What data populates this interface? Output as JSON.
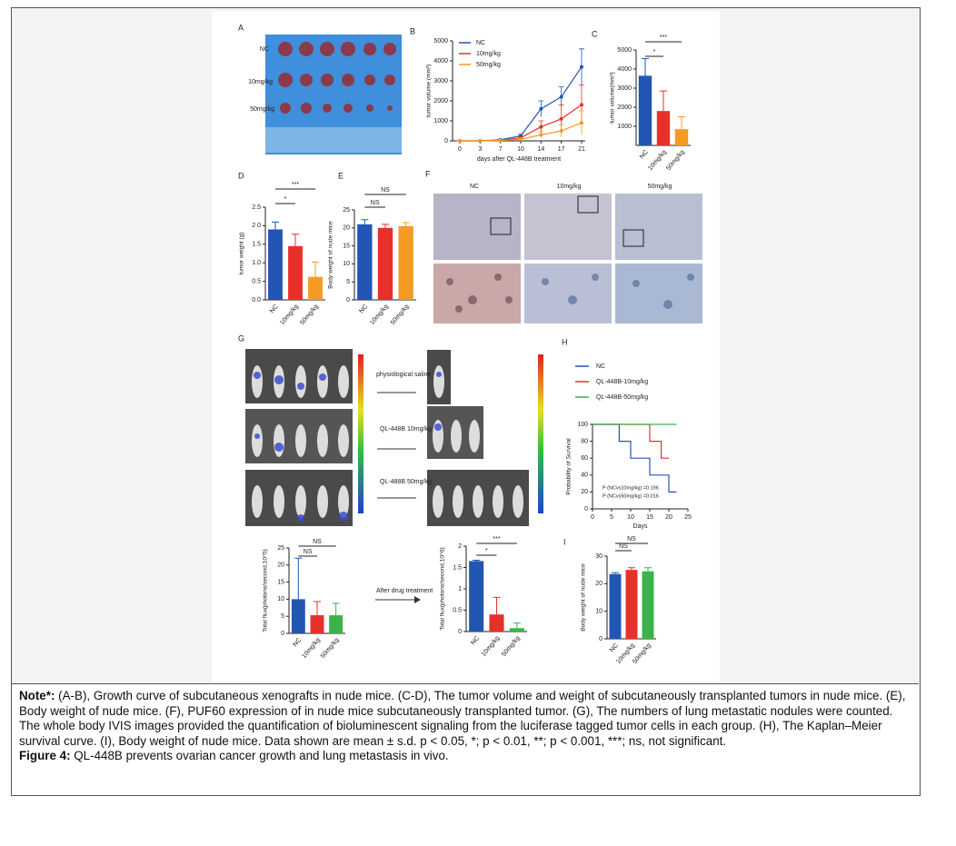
{
  "figure": {
    "panel_labels": [
      "A",
      "B",
      "C",
      "D",
      "E",
      "F",
      "G",
      "H",
      "I"
    ],
    "panel_a": {
      "rows": [
        "NC",
        "10mg/kg",
        "50mg/kg"
      ]
    },
    "panel_f": {
      "columns": [
        "NC",
        "10mg/kg",
        "50mg/kg"
      ]
    },
    "panel_g": {
      "groups": [
        "physiological saline",
        "QL-448B 10mg/kg",
        "QL-488B 50mg/kg"
      ],
      "arrow_label": "After drug treatment"
    }
  },
  "chart_data": [
    {
      "type": "line",
      "categories": [
        "0",
        "3",
        "7",
        "10",
        "14",
        "17",
        "21"
      ],
      "x_label": "days after QL-448B treatment",
      "y_label": "tumor volume (mm³)",
      "ylim": [
        0,
        5000
      ],
      "yticks": [
        0,
        1000,
        2000,
        3000,
        4000,
        5000
      ],
      "series": [
        {
          "name": "NC",
          "color": "#2256b4",
          "values": [
            0,
            0,
            50,
            250,
            1600,
            2200,
            3700
          ],
          "errors": [
            0,
            0,
            20,
            80,
            400,
            500,
            900
          ]
        },
        {
          "name": "10mg/kg",
          "color": "#e8302a",
          "values": [
            0,
            0,
            30,
            150,
            700,
            1100,
            1800
          ],
          "errors": [
            0,
            0,
            10,
            50,
            300,
            700,
            1000
          ]
        },
        {
          "name": "50mg/kg",
          "color": "#f59a23",
          "values": [
            0,
            0,
            20,
            80,
            300,
            500,
            900
          ],
          "errors": [
            0,
            0,
            5,
            30,
            150,
            300,
            600
          ]
        }
      ]
    },
    {
      "type": "bar",
      "categories": [
        "NC",
        "10mg/kg",
        "50mg/kg"
      ],
      "colors": [
        "#2256b4",
        "#e8302a",
        "#f59a23"
      ],
      "y_label": "tumor volume(mm³)",
      "ylim": [
        0,
        5000
      ],
      "yticks": [
        1000,
        2000,
        3000,
        4000,
        5000
      ],
      "values": [
        3650,
        1800,
        850
      ],
      "errors": [
        900,
        1050,
        650
      ],
      "annotations": [
        "*",
        "***"
      ]
    },
    {
      "type": "bar",
      "categories": [
        "NC",
        "10mg/kg",
        "50mg/kg"
      ],
      "colors": [
        "#2256b4",
        "#e8302a",
        "#f59a23"
      ],
      "y_label": "tumor weight (g)",
      "ylim": [
        0,
        2.5
      ],
      "yticks": [
        {
          "value": 0,
          "label": "0.0"
        },
        0.5,
        {
          "value": 1,
          "label": "1.0"
        },
        1.5,
        {
          "value": 2,
          "label": "2.0"
        },
        2.5
      ],
      "values": [
        1.9,
        1.45,
        0.62
      ],
      "errors": [
        0.2,
        0.32,
        0.4
      ],
      "annotations": [
        "*",
        "***"
      ]
    },
    {
      "type": "bar",
      "categories": [
        "NC",
        "10mg/kg",
        "50mg/kg"
      ],
      "colors": [
        "#2256b4",
        "#e8302a",
        "#f59a23"
      ],
      "y_label": "Body weight of nude mice",
      "ylim": [
        0,
        25
      ],
      "yticks": [
        0,
        5,
        10,
        15,
        20,
        25
      ],
      "values": [
        21,
        20,
        20.5
      ],
      "errors": [
        1.3,
        1,
        1
      ],
      "annotations": [
        "NS",
        "NS"
      ]
    },
    {
      "type": "bar",
      "categories": [
        "NC",
        "10mg/kg",
        "50mg/kg"
      ],
      "colors": [
        "#2256b4",
        "#e8302a",
        "#3cb34a"
      ],
      "y_label": "Total flux(photons/second,10^5)",
      "ylim": [
        0,
        25
      ],
      "yticks": [
        0,
        5,
        10,
        15,
        20,
        25
      ],
      "values": [
        10,
        5.3,
        5.3
      ],
      "errors": [
        12,
        4,
        3.5
      ],
      "annotations": [
        "NS",
        "NS"
      ]
    },
    {
      "type": "bar",
      "categories": [
        "NC",
        "10mg/kg",
        "50mg/kg"
      ],
      "colors": [
        "#2256b4",
        "#e8302a",
        "#3cb34a"
      ],
      "y_label": "Total flux(photons/second,10^6)",
      "ylim": [
        0,
        2
      ],
      "yticks": [
        0,
        0.5,
        1,
        1.5,
        2
      ],
      "values": [
        1.65,
        0.4,
        0.08
      ],
      "errors": [
        0.02,
        0.4,
        0.12
      ],
      "annotations": [
        "*",
        "***"
      ]
    },
    {
      "type": "survival",
      "x_label": "Days",
      "y_label": "Probability of Survival",
      "xlim": [
        0,
        25
      ],
      "xticks": [
        0,
        5,
        10,
        15,
        20,
        25
      ],
      "ylim": [
        0,
        100
      ],
      "yticks": [
        0,
        20,
        40,
        60,
        80,
        100
      ],
      "series": [
        {
          "name": "NC",
          "color": "#2256b4",
          "x": [
            0,
            7,
            7,
            10,
            10,
            15,
            15,
            20,
            20,
            22
          ],
          "values": [
            100,
            100,
            80,
            80,
            60,
            60,
            40,
            40,
            20,
            20
          ]
        },
        {
          "name": "QL-448B-10mg/kg",
          "color": "#e8302a",
          "x": [
            0,
            15,
            15,
            18,
            18,
            20
          ],
          "values": [
            100,
            100,
            80,
            80,
            60,
            60
          ]
        },
        {
          "name": "QL-448B-50mg/kg",
          "color": "#3cb34a",
          "x": [
            0,
            22
          ],
          "values": [
            100,
            100
          ]
        }
      ],
      "annotations": [
        "P (NCvs10mg/kg) =0.196",
        "P (NCvs50mg/kg) =0.016"
      ]
    },
    {
      "type": "bar",
      "categories": [
        "NC",
        "10mg/kg",
        "50mg/kg"
      ],
      "colors": [
        "#2256b4",
        "#e8302a",
        "#3cb34a"
      ],
      "y_label": "Body weight of nude mice",
      "ylim": [
        0,
        30
      ],
      "yticks": [
        0,
        10,
        20,
        30
      ],
      "values": [
        23.5,
        25,
        24.5
      ],
      "errors": [
        0.5,
        0.8,
        1.3
      ],
      "annotations": [
        "NS",
        "NS"
      ]
    }
  ],
  "caption": {
    "note_label": "Note*:",
    "note": " (A-B), Growth curve of subcutaneous xenografts in nude mice. (C-D), The tumor volume and weight of subcutaneously transplanted tumors in nude mice. (E), Body weight of nude mice. (F), PUF60 expression of in nude mice subcutaneously transplanted tumor. (G), The numbers of lung metastatic nodules were counted. The whole body IVIS images provided the quantification of bioluminescent signaling from the luciferase tagged tumor cells in each group. (H), The Kaplan–Meier survival curve. (I), Body weight of nude mice. Data shown are mean ± s.d. p < 0.05, *; p < 0.01, **; p < 0.001, ***; ns, not significant.",
    "figure_label": "Figure 4:",
    "figure_text": " QL-448B prevents ovarian cancer growth and lung metastasis in vivo."
  }
}
